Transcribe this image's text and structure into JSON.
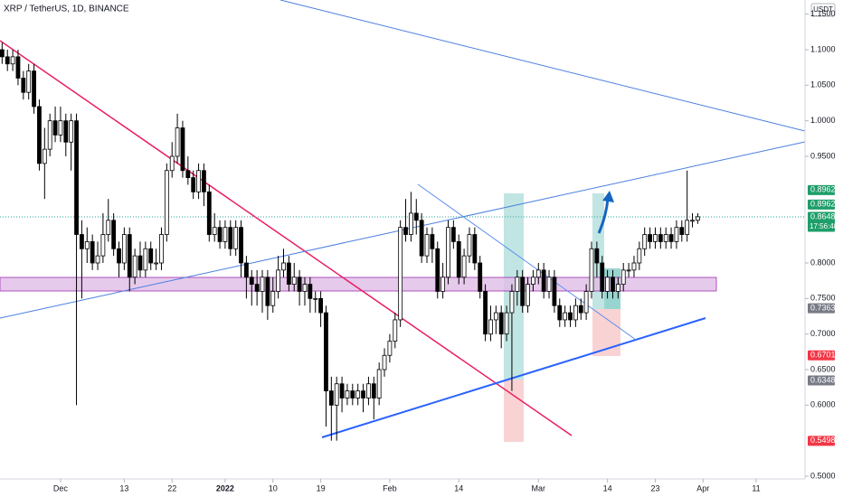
{
  "chart_data": {
    "type": "candlestick",
    "title": "XRP / TetherUS, 1D, BINANCE",
    "currency": "USDT",
    "x": [
      -11,
      -10,
      -9,
      -8,
      -7,
      -6,
      -5,
      -4,
      -3,
      -2,
      -1,
      0,
      1,
      2,
      3,
      4,
      5,
      6,
      7,
      8,
      9,
      10,
      11,
      12,
      13,
      14,
      15,
      16,
      17,
      18,
      19,
      20,
      21,
      22,
      23,
      24,
      25,
      26,
      27,
      28,
      29,
      30,
      31,
      32,
      33,
      34,
      35,
      36,
      37,
      38,
      39,
      40,
      41,
      42,
      43,
      44,
      45,
      46,
      47,
      48,
      49,
      50,
      51,
      52,
      53,
      54,
      55,
      56,
      57,
      58,
      59,
      60,
      61,
      62,
      63,
      64,
      65,
      66,
      67,
      68,
      69,
      70,
      71,
      72,
      73,
      74,
      75,
      76,
      77,
      78,
      79,
      80,
      81,
      82,
      83,
      84,
      85,
      86,
      87,
      88,
      89,
      90,
      91,
      92,
      93,
      94,
      95,
      96,
      97,
      98,
      99,
      100,
      101,
      102,
      103,
      104,
      105,
      106,
      107,
      108,
      109,
      110,
      111,
      112,
      113,
      114,
      115,
      116,
      117,
      118,
      119,
      120
    ],
    "open": [
      1.1,
      1.09,
      1.08,
      1.09,
      1.06,
      1.04,
      1.07,
      1.02,
      0.94,
      0.96,
      1.0,
      0.98,
      1.0,
      0.97,
      1.0,
      0.84,
      0.82,
      0.83,
      0.8,
      0.81,
      0.84,
      0.86,
      0.82,
      0.8,
      0.84,
      0.78,
      0.81,
      0.79,
      0.82,
      0.8,
      0.8,
      0.84,
      0.93,
      0.95,
      0.99,
      0.93,
      0.92,
      0.9,
      0.93,
      0.9,
      0.84,
      0.85,
      0.83,
      0.85,
      0.82,
      0.85,
      0.8,
      0.78,
      0.77,
      0.76,
      0.78,
      0.74,
      0.76,
      0.79,
      0.8,
      0.77,
      0.78,
      0.76,
      0.77,
      0.75,
      0.75,
      0.73,
      0.62,
      0.6,
      0.63,
      0.61,
      0.62,
      0.61,
      0.62,
      0.61,
      0.63,
      0.61,
      0.65,
      0.67,
      0.69,
      0.72,
      0.85,
      0.84,
      0.87,
      0.86,
      0.81,
      0.84,
      0.82,
      0.76,
      0.78,
      0.85,
      0.83,
      0.78,
      0.81,
      0.84,
      0.8,
      0.76,
      0.7,
      0.72,
      0.73,
      0.7,
      0.73,
      0.76,
      0.78,
      0.74,
      0.77,
      0.78,
      0.79,
      0.76,
      0.78,
      0.74,
      0.72,
      0.73,
      0.72,
      0.74,
      0.73,
      0.76,
      0.82,
      0.8,
      0.76,
      0.78,
      0.76,
      0.77,
      0.79,
      0.79,
      0.8,
      0.82,
      0.84,
      0.83,
      0.84,
      0.83,
      0.84,
      0.83,
      0.85,
      0.84,
      0.86,
      0.86
    ],
    "high": [
      1.11,
      1.1,
      1.1,
      1.1,
      1.07,
      1.08,
      1.08,
      1.03,
      0.99,
      1.01,
      1.02,
      1.02,
      1.01,
      1.01,
      1.01,
      0.86,
      0.85,
      0.84,
      0.83,
      0.87,
      0.89,
      0.87,
      0.83,
      0.85,
      0.85,
      0.82,
      0.83,
      0.83,
      0.83,
      0.82,
      0.85,
      0.94,
      0.97,
      1.01,
      1.0,
      0.95,
      0.93,
      0.94,
      0.94,
      0.91,
      0.87,
      0.86,
      0.86,
      0.86,
      0.86,
      0.86,
      0.81,
      0.79,
      0.79,
      0.79,
      0.79,
      0.78,
      0.81,
      0.82,
      0.81,
      0.8,
      0.79,
      0.78,
      0.78,
      0.76,
      0.76,
      0.74,
      0.64,
      0.64,
      0.64,
      0.63,
      0.63,
      0.63,
      0.63,
      0.64,
      0.64,
      0.66,
      0.68,
      0.7,
      0.73,
      0.86,
      0.89,
      0.9,
      0.89,
      0.87,
      0.85,
      0.85,
      0.83,
      0.8,
      0.86,
      0.86,
      0.84,
      0.82,
      0.85,
      0.85,
      0.81,
      0.77,
      0.74,
      0.74,
      0.74,
      0.74,
      0.77,
      0.79,
      0.79,
      0.78,
      0.79,
      0.8,
      0.8,
      0.79,
      0.79,
      0.75,
      0.74,
      0.74,
      0.75,
      0.75,
      0.77,
      0.83,
      0.83,
      0.81,
      0.79,
      0.79,
      0.78,
      0.8,
      0.8,
      0.81,
      0.83,
      0.85,
      0.85,
      0.85,
      0.85,
      0.85,
      0.85,
      0.86,
      0.86,
      0.93,
      0.87,
      0.87
    ],
    "low": [
      1.08,
      1.07,
      1.07,
      1.05,
      1.03,
      1.03,
      1.01,
      0.93,
      0.89,
      0.95,
      0.97,
      0.97,
      0.95,
      0.93,
      0.6,
      0.75,
      0.8,
      0.79,
      0.79,
      0.8,
      0.83,
      0.81,
      0.78,
      0.79,
      0.76,
      0.77,
      0.78,
      0.78,
      0.79,
      0.79,
      0.79,
      0.83,
      0.92,
      0.94,
      0.92,
      0.91,
      0.89,
      0.89,
      0.88,
      0.83,
      0.83,
      0.82,
      0.82,
      0.81,
      0.81,
      0.78,
      0.75,
      0.74,
      0.74,
      0.73,
      0.72,
      0.73,
      0.75,
      0.78,
      0.76,
      0.76,
      0.74,
      0.74,
      0.73,
      0.73,
      0.71,
      0.57,
      0.55,
      0.55,
      0.59,
      0.6,
      0.6,
      0.6,
      0.59,
      0.6,
      0.58,
      0.6,
      0.64,
      0.66,
      0.68,
      0.71,
      0.83,
      0.83,
      0.84,
      0.8,
      0.8,
      0.8,
      0.75,
      0.75,
      0.77,
      0.82,
      0.77,
      0.77,
      0.8,
      0.79,
      0.75,
      0.69,
      0.69,
      0.7,
      0.68,
      0.69,
      0.62,
      0.74,
      0.73,
      0.73,
      0.76,
      0.77,
      0.75,
      0.75,
      0.73,
      0.71,
      0.71,
      0.71,
      0.71,
      0.72,
      0.72,
      0.75,
      0.78,
      0.75,
      0.75,
      0.75,
      0.75,
      0.76,
      0.78,
      0.78,
      0.79,
      0.81,
      0.82,
      0.82,
      0.82,
      0.82,
      0.82,
      0.82,
      0.83,
      0.83,
      0.85,
      0.855
    ],
    "close": [
      1.09,
      1.08,
      1.09,
      1.06,
      1.04,
      1.07,
      1.02,
      0.94,
      0.96,
      1.0,
      0.98,
      1.0,
      0.97,
      1.0,
      0.84,
      0.82,
      0.83,
      0.8,
      0.81,
      0.84,
      0.86,
      0.82,
      0.8,
      0.84,
      0.78,
      0.81,
      0.79,
      0.82,
      0.8,
      0.8,
      0.84,
      0.93,
      0.95,
      0.99,
      0.93,
      0.92,
      0.9,
      0.93,
      0.9,
      0.84,
      0.85,
      0.83,
      0.85,
      0.82,
      0.85,
      0.8,
      0.78,
      0.77,
      0.76,
      0.78,
      0.74,
      0.76,
      0.79,
      0.8,
      0.77,
      0.78,
      0.76,
      0.77,
      0.75,
      0.75,
      0.73,
      0.62,
      0.6,
      0.63,
      0.61,
      0.62,
      0.61,
      0.62,
      0.61,
      0.63,
      0.61,
      0.65,
      0.67,
      0.69,
      0.72,
      0.85,
      0.84,
      0.87,
      0.86,
      0.81,
      0.84,
      0.82,
      0.76,
      0.78,
      0.85,
      0.83,
      0.78,
      0.81,
      0.84,
      0.8,
      0.76,
      0.7,
      0.72,
      0.73,
      0.7,
      0.73,
      0.76,
      0.78,
      0.74,
      0.77,
      0.78,
      0.79,
      0.76,
      0.78,
      0.74,
      0.72,
      0.73,
      0.72,
      0.74,
      0.73,
      0.76,
      0.82,
      0.8,
      0.76,
      0.78,
      0.76,
      0.77,
      0.79,
      0.79,
      0.8,
      0.82,
      0.84,
      0.83,
      0.84,
      0.83,
      0.84,
      0.83,
      0.85,
      0.84,
      0.86,
      0.86,
      0.865
    ],
    "xlim": [
      -11.4,
      140.2
    ],
    "ylim": [
      0.4962,
      1.1699
    ],
    "xticks": [
      {
        "value": 0,
        "label": "Dec"
      },
      {
        "value": 12,
        "label": "13"
      },
      {
        "value": 21,
        "label": "22"
      },
      {
        "value": 31,
        "label": "2022"
      },
      {
        "value": 40,
        "label": "10"
      },
      {
        "value": 49,
        "label": "19"
      },
      {
        "value": 62,
        "label": "Feb"
      },
      {
        "value": 75,
        "label": "14"
      },
      {
        "value": 90,
        "label": "Mar"
      },
      {
        "value": 103,
        "label": "14"
      },
      {
        "value": 112,
        "label": "23"
      },
      {
        "value": 121,
        "label": "Apr"
      },
      {
        "value": 131,
        "label": "11"
      }
    ],
    "yticks": [
      {
        "value": 1.15,
        "label": "1.1500"
      },
      {
        "value": 1.1,
        "label": "1.1000"
      },
      {
        "value": 1.05,
        "label": "1.0500"
      },
      {
        "value": 1.0,
        "label": "1.0000"
      },
      {
        "value": 0.95,
        "label": "0.9500"
      },
      {
        "value": 0.8,
        "label": "0.8000"
      },
      {
        "value": 0.75,
        "label": "0.7500"
      },
      {
        "value": 0.7,
        "label": "0.7000"
      },
      {
        "value": 0.65,
        "label": "0.6500"
      },
      {
        "value": 0.6,
        "label": "0.6000"
      },
      {
        "value": 0.5,
        "label": "0.5000"
      }
    ],
    "up_color": "#ffffff",
    "down_color": "#000000",
    "markers": [
      {
        "value": 0.8962,
        "color": "#1e9e6a"
      },
      {
        "value": 0.8962,
        "color": "#1e9e6a"
      },
      {
        "value": 0.8648,
        "color": "#1e9e6a",
        "countdown": "17:56:48"
      },
      {
        "value": 0.7363,
        "color": "#787b86"
      },
      {
        "value": 0.6701,
        "color": "#f23645"
      },
      {
        "value": 0.6348,
        "color": "#787b86"
      },
      {
        "value": 0.5498,
        "color": "#f23645"
      }
    ]
  }
}
